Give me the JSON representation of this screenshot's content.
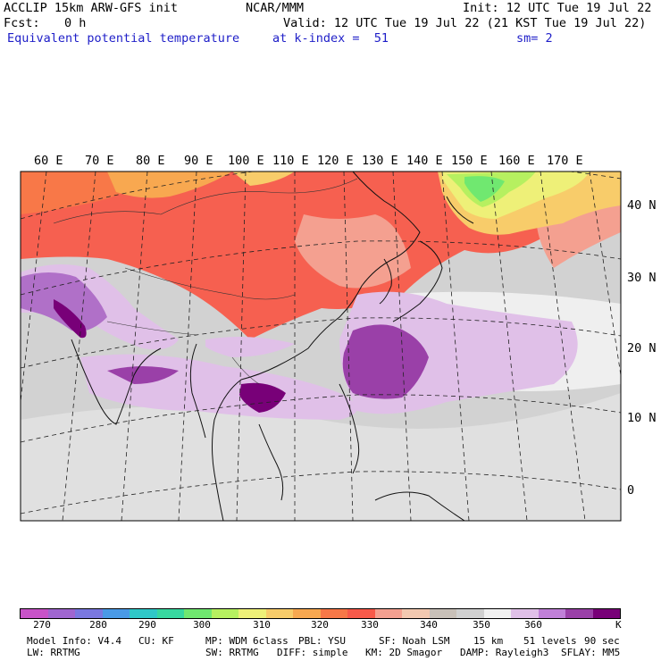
{
  "header": {
    "model": "ACCLIP 15km ARW-GFS init",
    "center": "NCAR/MMM",
    "init": "Init: 12 UTC Tue 19 Jul 22",
    "fcst_label": "Fcst:",
    "fcst_value": "0 h",
    "valid": "Valid: 12 UTC Tue 19 Jul 22 (21 KST Tue 19 Jul 22)",
    "field": "Equivalent potential temperature",
    "level": "at k-index =  51",
    "smoothing": "sm= 2"
  },
  "map": {
    "lon_labels": [
      "60 E",
      "70 E",
      "80 E",
      "90 E",
      "100 E",
      "110 E",
      "120 E",
      "130 E",
      "140 E",
      "150 E",
      "160 E",
      "170 E"
    ],
    "lat_labels": [
      "40 N",
      "30 N",
      "20 N",
      "10 N",
      "0"
    ]
  },
  "colorbar": {
    "unit": "K",
    "tick_labels": [
      "270",
      "280",
      "290",
      "300",
      "310",
      "320",
      "330",
      "340",
      "350",
      "360"
    ],
    "colors": [
      "#c853c8",
      "#a066d0",
      "#7a78e0",
      "#4a9ae6",
      "#30c8c8",
      "#38d8a0",
      "#70e870",
      "#b6f060",
      "#eef078",
      "#f8cc6a",
      "#f8a850",
      "#f87848",
      "#f85a4a",
      "#f4a090",
      "#f2c8b0",
      "#c8c0b8",
      "#d0d0d0",
      "#f0f0f0",
      "#e0c0e8",
      "#c080d8",
      "#9a40a8",
      "#780078"
    ]
  },
  "footer": {
    "line1": [
      "Model Info: V4.4",
      "CU: KF",
      "MP: WDM 6class",
      "PBL: YSU",
      "SF: Noah LSM",
      "15 km",
      "51 levels",
      "90 sec"
    ],
    "line2": [
      "LW: RRTMG",
      "SW: RRTMG",
      "DIFF: simple",
      "KM: 2D Smagor",
      "DAMP: Rayleigh3",
      "SFLAY: MM5"
    ]
  }
}
